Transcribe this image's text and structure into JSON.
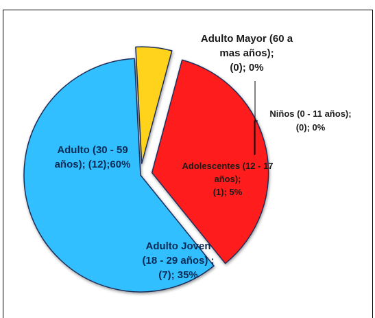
{
  "chart_data": {
    "type": "pie",
    "exploded": true,
    "slices": [
      {
        "name": "Niños (0 - 11 años)",
        "value": 0,
        "percent": "0%",
        "color": "#f2f2f2"
      },
      {
        "name": "Adolescentes (12 - 17 años)",
        "value": 1,
        "percent": "5%",
        "color": "#ffd21a"
      },
      {
        "name": "Adulto Joven (18 - 29 años)",
        "value": 7,
        "percent": "35%",
        "color": "#ff1a1a"
      },
      {
        "name": "Adulto (30 - 59 años)",
        "value": 12,
        "percent": "60%",
        "color": "#33bfff"
      },
      {
        "name": "Adulto Mayor (60 a mas años)",
        "value": 0,
        "percent": "0%",
        "color": "#f2f2f2"
      }
    ],
    "labels": {
      "adulto_mayor": [
        "Adulto Mayor (60 a",
        "mas años);",
        "(0); 0%"
      ],
      "ninos": [
        "Niños (0 - 11 años);",
        "(0); 0%"
      ],
      "adulto": [
        "Adulto (30 - 59",
        "años); (12);60%"
      ],
      "adolescentes": [
        "Adolescentes  (12 - 17",
        "años);",
        "(1); 5%"
      ],
      "adulto_joven": [
        "Adulto Joven",
        "(18 - 29 años) ;",
        "(7); 35%"
      ]
    }
  }
}
